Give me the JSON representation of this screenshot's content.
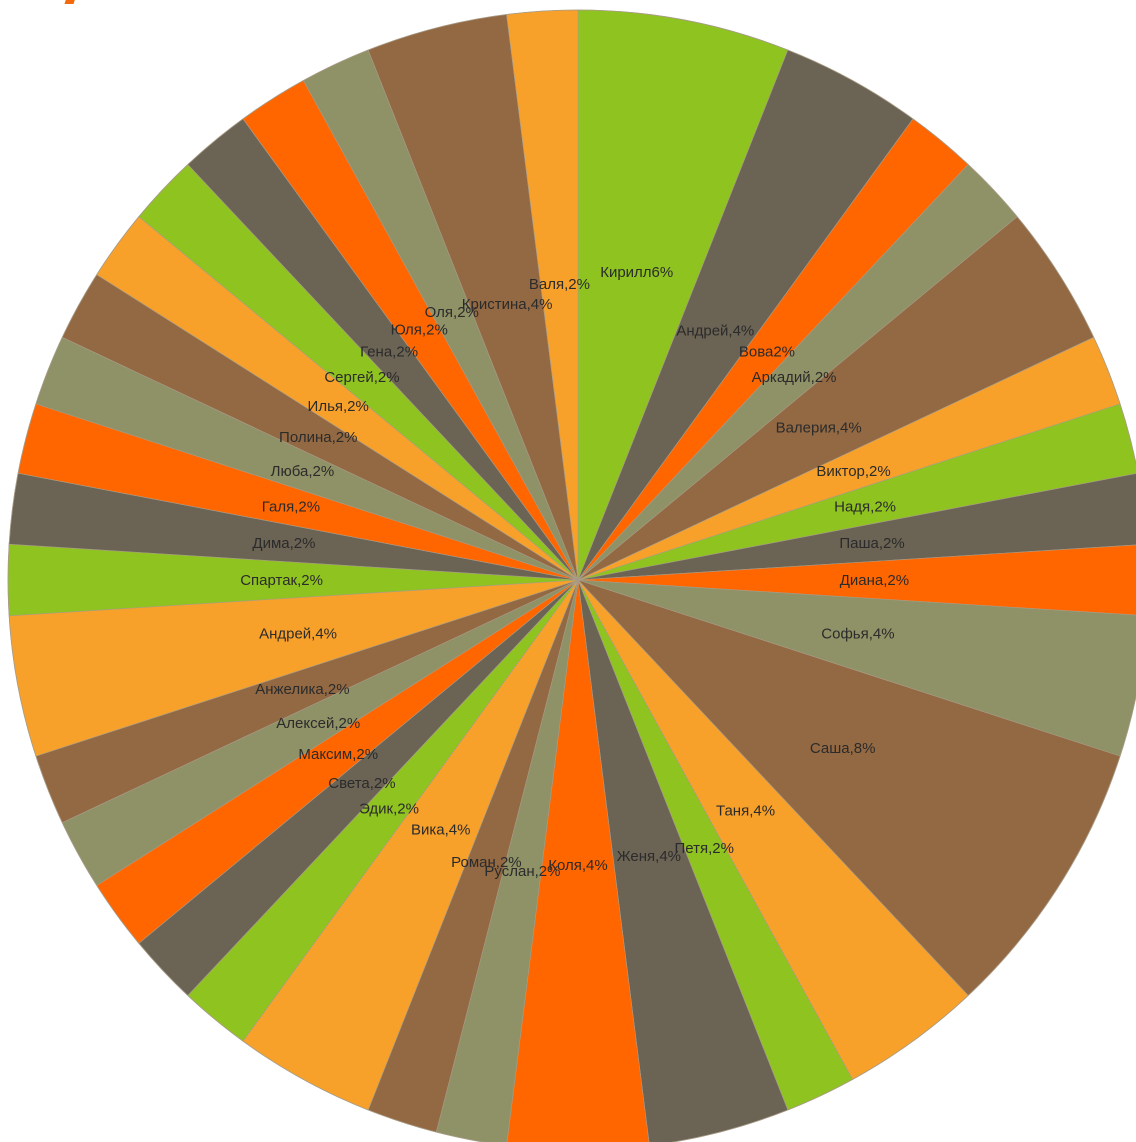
{
  "colors": {
    "green": "#8fc31f",
    "dark": "#6b6354",
    "orange": "#ff6600",
    "sage": "#8f9166",
    "brown": "#936943",
    "amber": "#f8a12a",
    "accent": "#f26a0c",
    "edge": "#a89c88"
  },
  "chart_data": {
    "type": "pie",
    "title": "",
    "legend": "none",
    "slices": [
      {
        "label": "Кирилл6%",
        "value": 6,
        "color": "green"
      },
      {
        "label": "Андрей,4%",
        "value": 4,
        "color": "dark"
      },
      {
        "label": "Вова2%",
        "value": 2,
        "color": "orange"
      },
      {
        "label": "Аркадий,2%",
        "value": 2,
        "color": "sage"
      },
      {
        "label": "Валерия,4%",
        "value": 4,
        "color": "brown"
      },
      {
        "label": "Виктор,2%",
        "value": 2,
        "color": "amber"
      },
      {
        "label": "Надя,2%",
        "value": 2,
        "color": "green"
      },
      {
        "label": "Паша,2%",
        "value": 2,
        "color": "dark"
      },
      {
        "label": "Диана,2%",
        "value": 2,
        "color": "orange"
      },
      {
        "label": "Софья,4%",
        "value": 4,
        "color": "sage"
      },
      {
        "label": "Саша,8%",
        "value": 8,
        "color": "brown"
      },
      {
        "label": "Таня,4%",
        "value": 4,
        "color": "amber"
      },
      {
        "label": "Петя,2%",
        "value": 2,
        "color": "green"
      },
      {
        "label": "Женя,4%",
        "value": 4,
        "color": "dark"
      },
      {
        "label": "Коля,4%",
        "value": 4,
        "color": "orange"
      },
      {
        "label": "Руслан,2%",
        "value": 2,
        "color": "sage"
      },
      {
        "label": "Роман,2%",
        "value": 2,
        "color": "brown"
      },
      {
        "label": "Вика,4%",
        "value": 4,
        "color": "amber"
      },
      {
        "label": "Эдик,2%",
        "value": 2,
        "color": "green"
      },
      {
        "label": "Света,2%",
        "value": 2,
        "color": "dark"
      },
      {
        "label": "Максим,2%",
        "value": 2,
        "color": "orange"
      },
      {
        "label": "Алексей,2%",
        "value": 2,
        "color": "sage"
      },
      {
        "label": "Анжелика,2%",
        "value": 2,
        "color": "brown"
      },
      {
        "label": "Андрей,4%",
        "value": 4,
        "color": "amber"
      },
      {
        "label": "Спартак,2%",
        "value": 2,
        "color": "green"
      },
      {
        "label": "Дима,2%",
        "value": 2,
        "color": "dark"
      },
      {
        "label": "Галя,2%",
        "value": 2,
        "color": "orange"
      },
      {
        "label": "Люба,2%",
        "value": 2,
        "color": "sage"
      },
      {
        "label": "Полина,2%",
        "value": 2,
        "color": "brown"
      },
      {
        "label": "Илья,2%",
        "value": 2,
        "color": "amber"
      },
      {
        "label": "Сергей,2%",
        "value": 2,
        "color": "green"
      },
      {
        "label": "Гена,2%",
        "value": 2,
        "color": "dark"
      },
      {
        "label": "Юля,2%",
        "value": 2,
        "color": "orange"
      },
      {
        "label": "Оля,2%",
        "value": 2,
        "color": "sage"
      },
      {
        "label": "Кристина,4%",
        "value": 4,
        "color": "brown"
      },
      {
        "label": "Валя,2%",
        "value": 2,
        "color": "amber"
      }
    ]
  }
}
